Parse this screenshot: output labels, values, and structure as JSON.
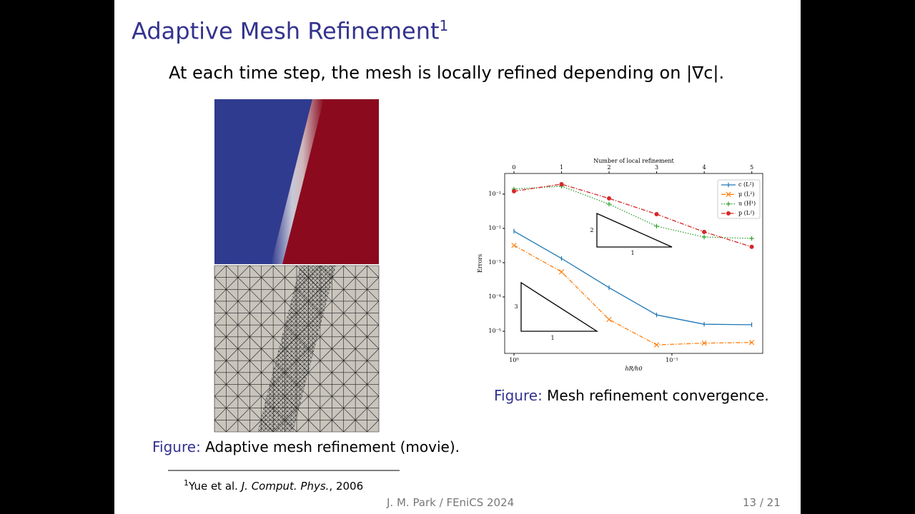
{
  "title": {
    "text": "Adaptive Mesh Refinement",
    "footnote_mark": "1"
  },
  "body": "At each time step, the mesh is locally refined depending on |∇c|.",
  "figure_left": {
    "label": "Figure:",
    "caption": "Adaptive mesh refinement (movie)."
  },
  "figure_right": {
    "label": "Figure:",
    "caption": "Mesh refinement convergence."
  },
  "footnote": {
    "mark": "1",
    "authors": "Yue et al.",
    "journal": "J. Comput. Phys.",
    "year": ", 2006"
  },
  "footer": {
    "center": "J. M. Park / FEniCS 2024",
    "page": "13 / 21"
  },
  "chart_data": {
    "type": "line",
    "xlabel": "hR/h0",
    "ylabel": "Errors",
    "x2label": "Number of local refinement",
    "x": [
      1,
      0.5,
      0.25,
      0.125,
      0.0625,
      0.03125
    ],
    "xlim": [
      1.145,
      0.0266
    ],
    "xscale": "log",
    "xticks": [
      {
        "value": 1,
        "label": "10⁰"
      },
      {
        "value": 0.1,
        "label": "10⁻¹"
      }
    ],
    "x2lim": [
      -0.195,
      5.23
    ],
    "x2ticks": [
      0,
      1,
      2,
      3,
      4,
      5
    ],
    "ylim": [
      0.4,
      2.26e-06
    ],
    "yscale": "log",
    "yticks": [
      {
        "value": 0.1,
        "label": "10⁻¹"
      },
      {
        "value": 0.01,
        "label": "10⁻²"
      },
      {
        "value": 0.001,
        "label": "10⁻³"
      },
      {
        "value": 0.0001,
        "label": "10⁻⁴"
      },
      {
        "value": 1e-05,
        "label": "10⁻⁵"
      }
    ],
    "legend": "upper right",
    "series": [
      {
        "name": "c (L²)",
        "color": "#1f77b4",
        "linestyle": "solid",
        "marker": "tick",
        "values": [
          0.0083,
          0.00133,
          0.000187,
          3e-05,
          1.6e-05,
          1.55e-05
        ]
      },
      {
        "name": "μ (L²)",
        "color": "#ff7f0e",
        "linestyle": "dashdot",
        "marker": "x",
        "values": [
          0.0032,
          0.00054,
          2.2e-05,
          4e-06,
          4.5e-06,
          4.7e-06
        ]
      },
      {
        "name": "u (H¹)",
        "color": "#2ca02c",
        "linestyle": "dotted",
        "marker": "plus",
        "values": [
          0.14,
          0.17,
          0.051,
          0.0116,
          0.0056,
          0.0051
        ]
      },
      {
        "name": "p (L²)",
        "color": "#d62728",
        "linestyle": "dashdot",
        "marker": "circle",
        "values": [
          0.121,
          0.195,
          0.075,
          0.026,
          0.0079,
          0.0029
        ]
      }
    ],
    "annotations": [
      "2",
      "1",
      "3",
      "1"
    ]
  }
}
